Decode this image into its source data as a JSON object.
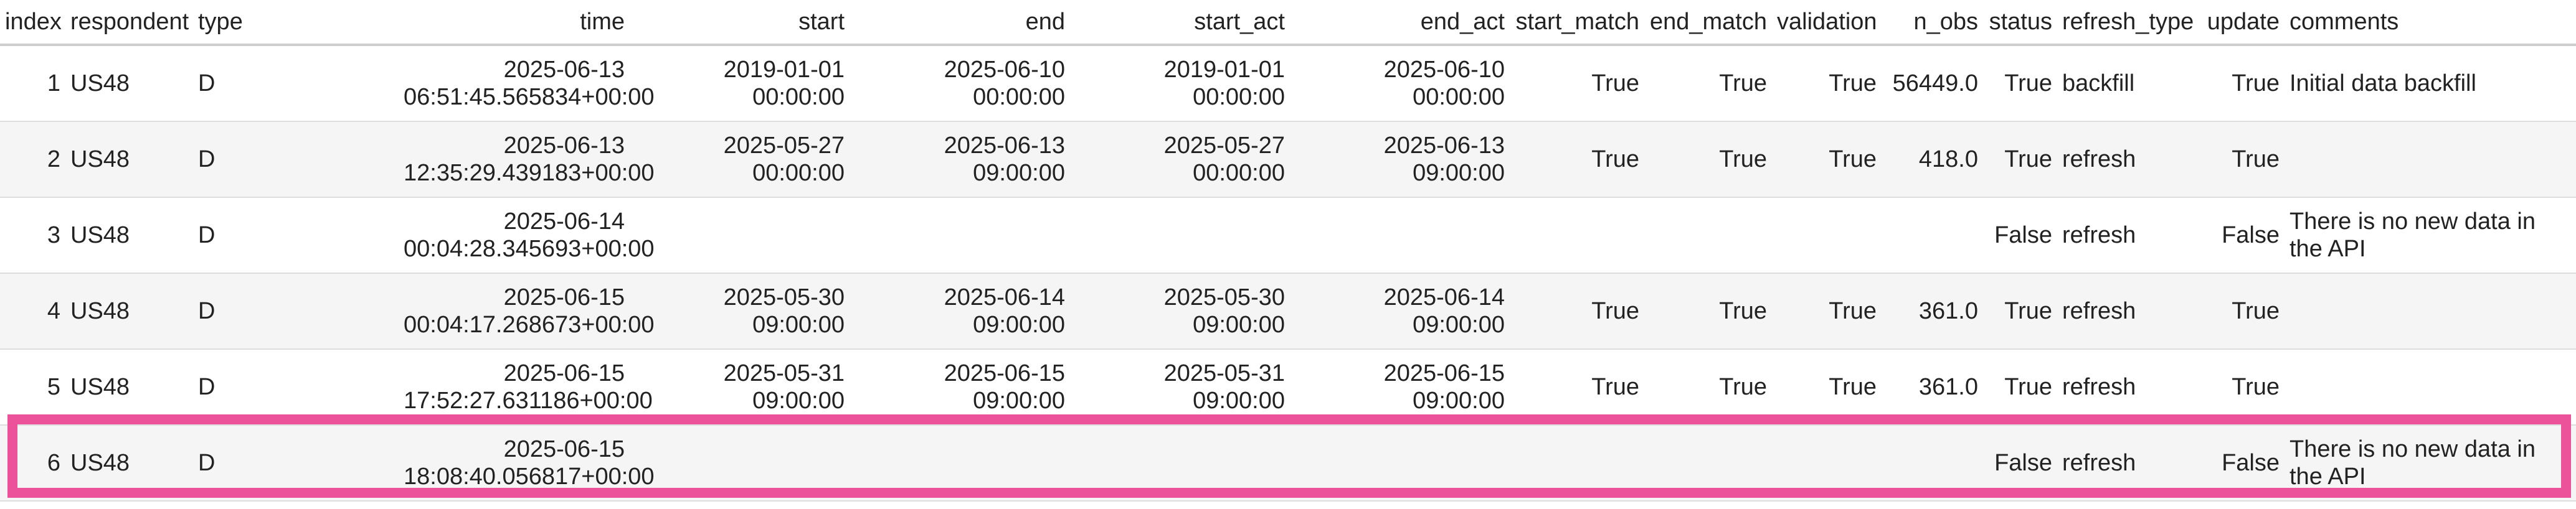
{
  "columns": [
    "index",
    "respondent",
    "type",
    "time",
    "start",
    "end",
    "start_act",
    "end_act",
    "start_match",
    "end_match",
    "validation",
    "n_obs",
    "status",
    "refresh_type",
    "update",
    "comments"
  ],
  "rows": [
    {
      "index": "1",
      "respondent": "US48",
      "type": "D",
      "time_date": "2025-06-13",
      "time_clock": "06:51:45.565834+00:00",
      "start_date": "2019-01-01",
      "start_clock": "00:00:00",
      "end_date": "2025-06-10",
      "end_clock": "00:00:00",
      "start_act_date": "2019-01-01",
      "start_act_clock": "00:00:00",
      "end_act_date": "2025-06-10",
      "end_act_clock": "00:00:00",
      "start_match": "True",
      "end_match": "True",
      "validation": "True",
      "n_obs": "56449.0",
      "status": "True",
      "refresh_type": "backfill",
      "update": "True",
      "comments": "Initial data backfill"
    },
    {
      "index": "2",
      "respondent": "US48",
      "type": "D",
      "time_date": "2025-06-13",
      "time_clock": "12:35:29.439183+00:00",
      "start_date": "2025-05-27",
      "start_clock": "00:00:00",
      "end_date": "2025-06-13",
      "end_clock": "09:00:00",
      "start_act_date": "2025-05-27",
      "start_act_clock": "00:00:00",
      "end_act_date": "2025-06-13",
      "end_act_clock": "09:00:00",
      "start_match": "True",
      "end_match": "True",
      "validation": "True",
      "n_obs": "418.0",
      "status": "True",
      "refresh_type": "refresh",
      "update": "True",
      "comments": ""
    },
    {
      "index": "3",
      "respondent": "US48",
      "type": "D",
      "time_date": "2025-06-14",
      "time_clock": "00:04:28.345693+00:00",
      "start_date": "",
      "start_clock": "",
      "end_date": "",
      "end_clock": "",
      "start_act_date": "",
      "start_act_clock": "",
      "end_act_date": "",
      "end_act_clock": "",
      "start_match": "",
      "end_match": "",
      "validation": "",
      "n_obs": "",
      "status": "False",
      "refresh_type": "refresh",
      "update": "False",
      "comments": "There is no new data in the API"
    },
    {
      "index": "4",
      "respondent": "US48",
      "type": "D",
      "time_date": "2025-06-15",
      "time_clock": "00:04:17.268673+00:00",
      "start_date": "2025-05-30",
      "start_clock": "09:00:00",
      "end_date": "2025-06-14",
      "end_clock": "09:00:00",
      "start_act_date": "2025-05-30",
      "start_act_clock": "09:00:00",
      "end_act_date": "2025-06-14",
      "end_act_clock": "09:00:00",
      "start_match": "True",
      "end_match": "True",
      "validation": "True",
      "n_obs": "361.0",
      "status": "True",
      "refresh_type": "refresh",
      "update": "True",
      "comments": ""
    },
    {
      "index": "5",
      "respondent": "US48",
      "type": "D",
      "time_date": "2025-06-15",
      "time_clock": "17:52:27.631186+00:00",
      "start_date": "2025-05-31",
      "start_clock": "09:00:00",
      "end_date": "2025-06-15",
      "end_clock": "09:00:00",
      "start_act_date": "2025-05-31",
      "start_act_clock": "09:00:00",
      "end_act_date": "2025-06-15",
      "end_act_clock": "09:00:00",
      "start_match": "True",
      "end_match": "True",
      "validation": "True",
      "n_obs": "361.0",
      "status": "True",
      "refresh_type": "refresh",
      "update": "True",
      "comments": ""
    },
    {
      "index": "6",
      "respondent": "US48",
      "type": "D",
      "time_date": "2025-06-15",
      "time_clock": "18:08:40.056817+00:00",
      "start_date": "",
      "start_clock": "",
      "end_date": "",
      "end_clock": "",
      "start_act_date": "",
      "start_act_clock": "",
      "end_act_date": "",
      "end_act_clock": "",
      "start_match": "",
      "end_match": "",
      "validation": "",
      "n_obs": "",
      "status": "False",
      "refresh_type": "refresh",
      "update": "False",
      "comments": "There is no new data in the API"
    }
  ],
  "highlight": {
    "row_index": "6",
    "color": "#ec529a"
  },
  "colors": {
    "stripe": "#f5f5f5",
    "text": "#222222"
  }
}
